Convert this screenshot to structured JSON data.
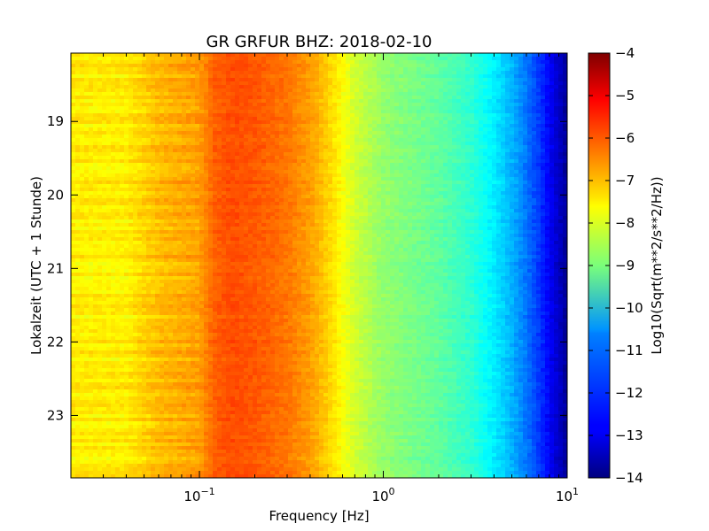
{
  "chart_data": {
    "type": "heatmap",
    "title": "GR GRFUR BHZ: 2018-02-10",
    "xlabel": "Frequency [Hz]",
    "ylabel": "Lokalzeit (UTC + 1 Stunde)",
    "x_scale": "log",
    "xlim": [
      0.02,
      10
    ],
    "x_ticks": [
      {
        "value": 0.1,
        "base": "10",
        "exp": "−1"
      },
      {
        "value": 1,
        "base": "10",
        "exp": "0"
      },
      {
        "value": 10,
        "base": "10",
        "exp": "1"
      }
    ],
    "ylim": [
      18.07,
      23.85
    ],
    "y_inverted": true,
    "y_ticks": [
      {
        "value": 19,
        "label": "19"
      },
      {
        "value": 20,
        "label": "20"
      },
      {
        "value": 21,
        "label": "21"
      },
      {
        "value": 22,
        "label": "22"
      },
      {
        "value": 23,
        "label": "23"
      }
    ],
    "colorbar": {
      "label": "Log10(Sqrt(m**2/s**2/Hz))",
      "range": [
        -14,
        -4
      ],
      "colormap": "jet",
      "ticks": [
        "−4",
        "−5",
        "−6",
        "−7",
        "−8",
        "−9",
        "−10",
        "−11",
        "−12",
        "−13",
        "−14"
      ]
    },
    "spectrum_profile": {
      "frequency_hz": [
        0.02,
        0.04,
        0.06,
        0.1,
        0.12,
        0.15,
        0.2,
        0.3,
        0.4,
        0.5,
        0.6,
        0.7,
        1.0,
        1.5,
        2.0,
        3.0,
        4.0,
        5.0,
        6.0,
        7.0,
        8.0,
        9.0,
        10.0
      ],
      "log10_amplitude": [
        -7.6,
        -7.6,
        -7.1,
        -6.8,
        -6.2,
        -6.0,
        -6.1,
        -6.4,
        -6.8,
        -7.3,
        -7.8,
        -8.2,
        -8.8,
        -9.1,
        -9.3,
        -9.8,
        -10.4,
        -11.0,
        -11.6,
        -12.2,
        -12.8,
        -13.3,
        -13.8
      ]
    },
    "grid": false,
    "legend": "colorbar-right"
  }
}
